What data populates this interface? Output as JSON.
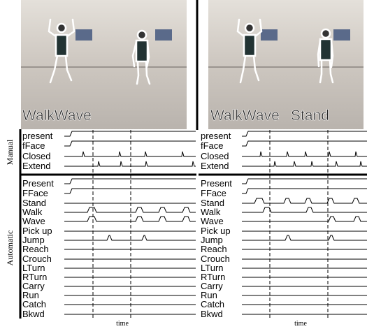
{
  "group_labels": [
    "Manual",
    "Automatic"
  ],
  "left": {
    "captions": [
      "WalkWave"
    ],
    "xlabel": "time",
    "manual": [
      "present",
      "fFace",
      "Closed",
      "Extend"
    ],
    "automatic": [
      "Present",
      "FFace",
      "Stand",
      "Walk",
      "Wave",
      "Pick up",
      "Jump",
      "Reach",
      "Crouch",
      "LTurn",
      "RTurn",
      "Carry",
      "Run",
      "Catch",
      "Bkwd"
    ]
  },
  "right": {
    "captions": [
      "WalkWave",
      "Stand"
    ],
    "xlabel": "time",
    "manual": [
      "present",
      "fFace",
      "Closed",
      "Extend"
    ],
    "automatic": [
      "Present",
      "FFace",
      "Stand",
      "Walk",
      "Wave",
      "Pick up",
      "Jump",
      "Reach",
      "Crouch",
      "LTurn",
      "RTurn",
      "Carry",
      "Run",
      "Catch",
      "Bkwd"
    ]
  }
}
